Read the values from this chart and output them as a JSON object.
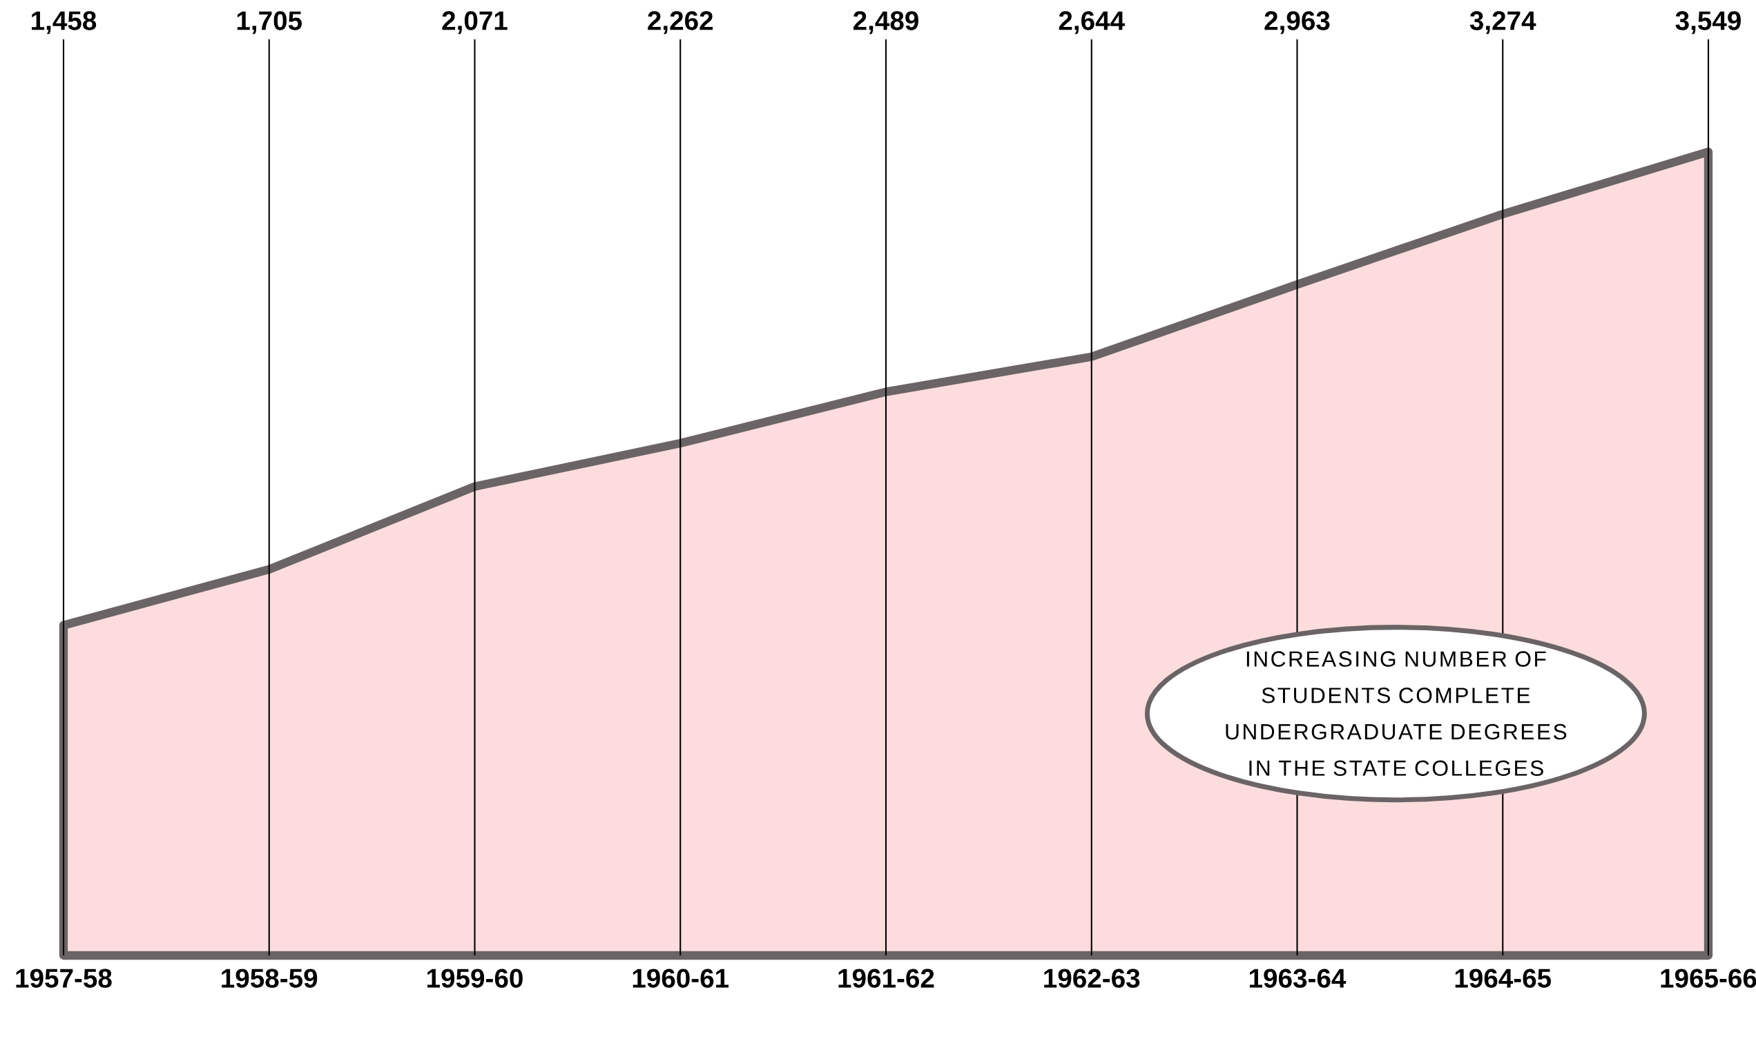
{
  "chart_data": {
    "type": "area",
    "title": "INCREASING NUMBER OF STUDENTS COMPLETE UNDERGRADUATE DEGREES IN THE STATE COLLEGES",
    "categories": [
      "1957-58",
      "1958-59",
      "1959-60",
      "1960-61",
      "1961-62",
      "1962-63",
      "1963-64",
      "1964-65",
      "1965-66"
    ],
    "values": [
      1458,
      1705,
      2071,
      2262,
      2489,
      2644,
      2963,
      3274,
      3549
    ],
    "value_labels": [
      "1,458",
      "1,705",
      "2,071",
      "2,262",
      "2,489",
      "2,644",
      "2,963",
      "3,274",
      "3,549"
    ],
    "color": "#fcdcdc",
    "grid": "x"
  }
}
